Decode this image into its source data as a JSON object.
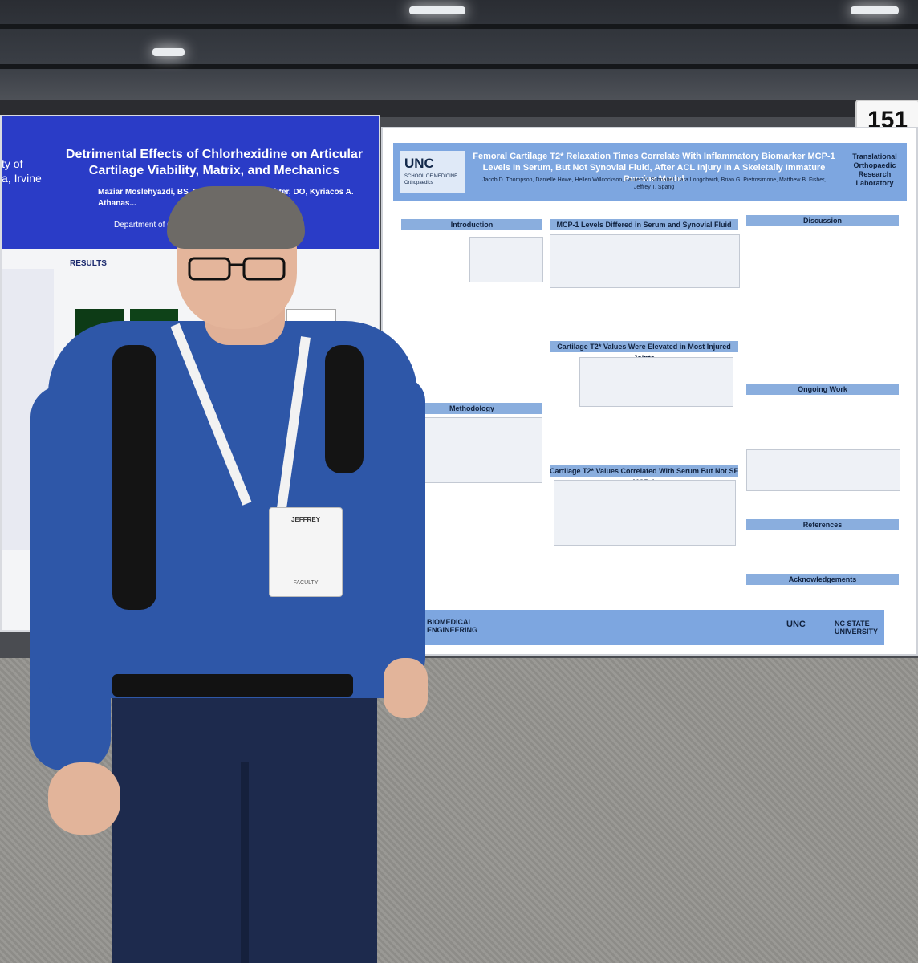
{
  "booth_number": "151",
  "left_poster": {
    "university_fragment": "ty of\na, Irvine",
    "title": "Detrimental Effects of Chlorhexidine on Articular Cartilage Viability, Matrix, and Mechanics",
    "authors": "Maziar Moslehyazdi, BS, Benjamin Bi... Schlechter, DO, Kyriacos A. Athanas...",
    "department": "Department of Or... ...ge, CA",
    "results_heading": "RESULTS"
  },
  "right_poster": {
    "logo": "UNC",
    "logo_sub": "SCHOOL OF MEDICINE\nOrthopaedics",
    "title": "Femoral Cartilage T2* Relaxation Times Correlate With Inflammatory Biomarker MCP-1 Levels In Serum, But Not Synovial Fluid, After ACL Injury In A Skeletally Immature Porcine Model",
    "authors": "Jacob D. Thompson, Danielle Howe, Hellen Willcockson, Lauren V. Schnabel, Lara Longobardi, Brian G. Pietrosimone, Matthew B. Fisher, Jeffrey T. Spang",
    "lab": "Translational Orthopaedic Research Laboratory",
    "sections": {
      "introduction": "Introduction",
      "mcp1": "MCP-1 Levels Differed in Serum and Synovial Fluid",
      "discussion": "Discussion",
      "cartilage": "Cartilage T2* Values Were Elevated in Most Injured Joints",
      "methodology": "Methodology",
      "ongoing": "Ongoing Work",
      "correlated": "Cartilage T2* Values Correlated With Serum But Not SF MCP-1",
      "references": "References",
      "acknowledgements": "Acknowledgements"
    },
    "footer_left": "BIOMEDICAL ENGINEERING",
    "footer_unc": "UNC",
    "footer_ncstate": "NC STATE UNIVERSITY"
  },
  "badge": {
    "name": "JEFFREY",
    "role": "FACULTY"
  },
  "colors": {
    "left_header": "#2a3cc7",
    "right_header": "#7da6e0",
    "shirt": "#2e57a8"
  }
}
